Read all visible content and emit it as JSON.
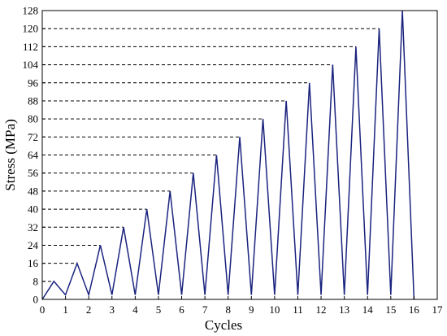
{
  "chart_data": {
    "type": "line",
    "title": "",
    "xlabel": "Cycles",
    "ylabel": "Stress (MPa)",
    "xlim": [
      0,
      17
    ],
    "ylim": [
      0,
      128
    ],
    "x_ticks": [
      0,
      1,
      2,
      3,
      4,
      5,
      6,
      7,
      8,
      9,
      10,
      11,
      12,
      13,
      14,
      15,
      16,
      17
    ],
    "y_ticks": [
      0,
      8,
      16,
      24,
      32,
      40,
      48,
      56,
      64,
      72,
      80,
      88,
      96,
      104,
      112,
      120,
      128
    ],
    "grid": false,
    "peak_reference_lines": "dashed",
    "series": [
      {
        "color": "#1a237e",
        "x": [
          0,
          0.5,
          1,
          1.5,
          2,
          2.5,
          3,
          3.5,
          4,
          4.5,
          5,
          5.5,
          6,
          6.5,
          7,
          7.5,
          8,
          8.5,
          9,
          9.5,
          10,
          10.5,
          11,
          11.5,
          12,
          12.5,
          13,
          13.5,
          14,
          14.5,
          15,
          15.5,
          16
        ],
        "y": [
          0,
          8,
          2,
          16,
          2,
          24,
          2,
          32,
          2,
          40,
          2,
          48,
          2,
          56,
          2,
          64,
          2,
          72,
          2,
          80,
          2,
          88,
          2,
          96,
          2,
          104,
          2,
          112,
          2,
          120,
          2,
          128,
          0
        ]
      }
    ]
  }
}
